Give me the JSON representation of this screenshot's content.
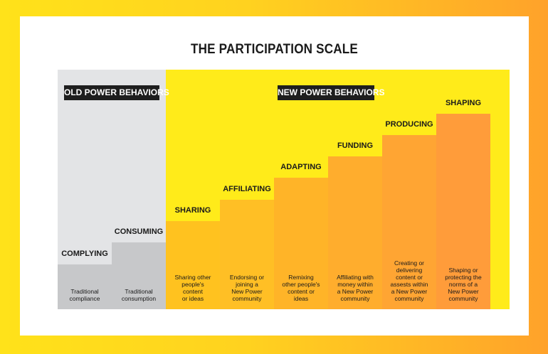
{
  "title": "THE PARTICIPATION SCALE",
  "sections": {
    "old": "OLD POWER BEHAVIORS",
    "new": "NEW POWER BEHAVIORS"
  },
  "steps": [
    {
      "name": "COMPLYING",
      "desc": "Traditional\ncompliance",
      "color": "#C7C8CA",
      "level": 1
    },
    {
      "name": "CONSUMING",
      "desc": "Traditional\nconsumption",
      "color": "#C7C8CA",
      "level": 2
    },
    {
      "name": "SHARING",
      "desc": "Sharing other\npeople's\ncontent\nor ideas",
      "color": "#FFC21F",
      "level": 3
    },
    {
      "name": "AFFILIATING",
      "desc": "Endorsing or\njoining a\nNew Power\ncommunity",
      "color": "#FFBF25",
      "level": 4
    },
    {
      "name": "ADAPTING",
      "desc": "Remixing\nother people's\ncontent or\nideas",
      "color": "#FFB428",
      "level": 5
    },
    {
      "name": "FUNDING",
      "desc": "Affiliating with\nmoney within\na New Power\ncommunity",
      "color": "#FFAD2D",
      "level": 6
    },
    {
      "name": "PRODUCING",
      "desc": "Creating or\ndelivering\ncontent or\nassests within\na New Power\ncommunity",
      "color": "#FFA533",
      "level": 7
    },
    {
      "name": "SHAPING",
      "desc": "Shaping or\nprotecting the\nnorms of a\nNew Power\ncommunity",
      "color": "#FF9C3A",
      "level": 8
    }
  ]
}
